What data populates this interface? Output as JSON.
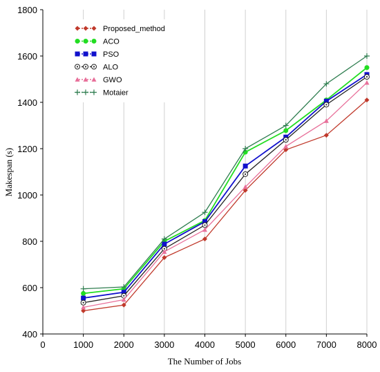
{
  "chart_data": {
    "type": "line",
    "title": "",
    "xlabel": "The Number of Jobs",
    "ylabel": "Makespan (s)",
    "x": [
      1000,
      2000,
      3000,
      4000,
      5000,
      6000,
      7000,
      8000
    ],
    "xlim": [
      0,
      8000
    ],
    "ylim": [
      400,
      1800
    ],
    "xticks": [
      0,
      1000,
      2000,
      3000,
      4000,
      5000,
      6000,
      7000,
      8000
    ],
    "yticks": [
      400,
      600,
      800,
      1000,
      1200,
      1400,
      1600,
      1800
    ],
    "grid": "vertical",
    "legend_position": "top-left",
    "series": [
      {
        "name": "Proposed_method",
        "color": "#c0392b",
        "marker": "diamond",
        "values": [
          500,
          525,
          730,
          810,
          1020,
          1195,
          1258,
          1410
        ]
      },
      {
        "name": "ACO",
        "color": "#22dd22",
        "marker": "circle",
        "values": [
          575,
          595,
          800,
          890,
          1185,
          1278,
          1410,
          1550
        ]
      },
      {
        "name": "PSO",
        "color": "#1111cc",
        "marker": "square",
        "values": [
          555,
          580,
          788,
          885,
          1125,
          1250,
          1405,
          1520
        ]
      },
      {
        "name": "ALO",
        "color": "#222222",
        "marker": "circle-dot",
        "values": [
          535,
          565,
          768,
          870,
          1090,
          1238,
          1390,
          1510
        ]
      },
      {
        "name": "GWO",
        "color": "#e8709a",
        "marker": "triangle",
        "values": [
          515,
          548,
          755,
          850,
          1035,
          1210,
          1320,
          1485
        ]
      },
      {
        "name": "Motaier",
        "color": "#2e7d4f",
        "marker": "plus",
        "values": [
          595,
          603,
          810,
          925,
          1200,
          1300,
          1480,
          1600
        ]
      }
    ]
  }
}
